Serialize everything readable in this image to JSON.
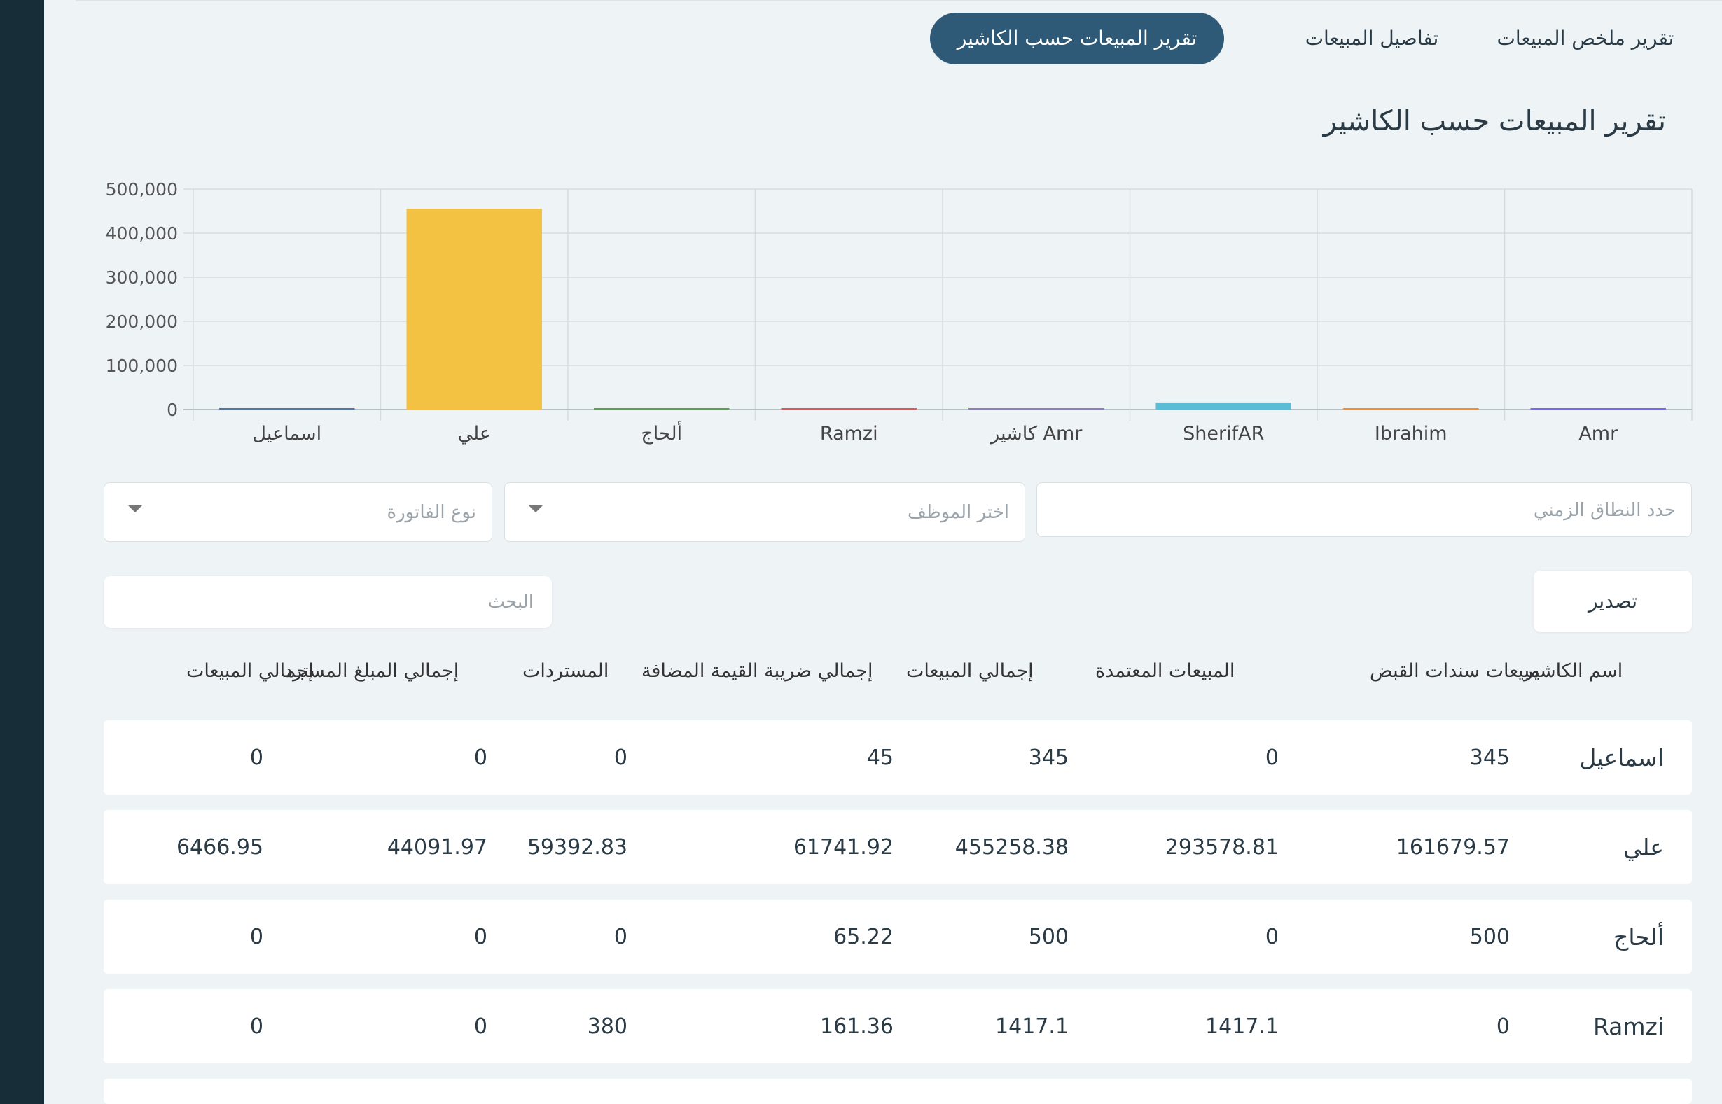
{
  "tabs": [
    {
      "label": "تقرير ملخص المبيعات",
      "active": false
    },
    {
      "label": "تفاصيل المبيعات",
      "active": false
    },
    {
      "label": "تقرير المبيعات حسب الكاشير",
      "active": true
    }
  ],
  "page_title": "تقرير المبيعات حسب الكاشير",
  "colors": {
    "sidebar": "#172d38",
    "accent": "#2f5a77",
    "background": "#eef3f6"
  },
  "chart_data": {
    "type": "bar",
    "categories": [
      "اسماعيل",
      "علي",
      "ألحاج",
      "Ramzi",
      "كاشير Amr",
      "SherifAR",
      "Ibrahim",
      "Amr"
    ],
    "values": [
      345,
      455258.38,
      500,
      1417.1,
      2000,
      16000,
      1000,
      1000
    ],
    "colors": [
      "#4e79a7",
      "#f4c243",
      "#59a14f",
      "#e15759",
      "#8e7cc3",
      "#5bbcd6",
      "#f28e2b",
      "#7b68ee"
    ],
    "yticks": [
      "0",
      "100,000",
      "200,000",
      "300,000",
      "400,000",
      "500,000"
    ],
    "ylim": [
      0,
      500000
    ],
    "grid": true,
    "legend": "none"
  },
  "filters": {
    "date_range_placeholder": "حدد النطاق الزمني",
    "employee_placeholder": "اختر الموظف",
    "invoice_type_placeholder": "نوع الفاتورة"
  },
  "toolbar": {
    "export_label": "تصدير",
    "search_placeholder": "البحث"
  },
  "table": {
    "columns": [
      "اسم الكاشير",
      "مبيعات سندات القبض",
      "المبيعات المعتمدة",
      "إجمالي المبيعات",
      "إجمالي ضريبة القيمة المضافة",
      "المستردات",
      "إجمالي المبلغ المسترد",
      "إجمالي المبيعات"
    ],
    "rows": [
      [
        "اسماعيل",
        "345",
        "0",
        "345",
        "45",
        "0",
        "0",
        "0"
      ],
      [
        "علي",
        "161679.57",
        "293578.81",
        "455258.38",
        "61741.92",
        "59392.83",
        "44091.97",
        "6466.95"
      ],
      [
        "ألحاج",
        "500",
        "0",
        "500",
        "65.22",
        "0",
        "0",
        "0"
      ],
      [
        "Ramzi",
        "0",
        "1417.1",
        "1417.1",
        "161.36",
        "380",
        "0",
        "0"
      ]
    ]
  }
}
